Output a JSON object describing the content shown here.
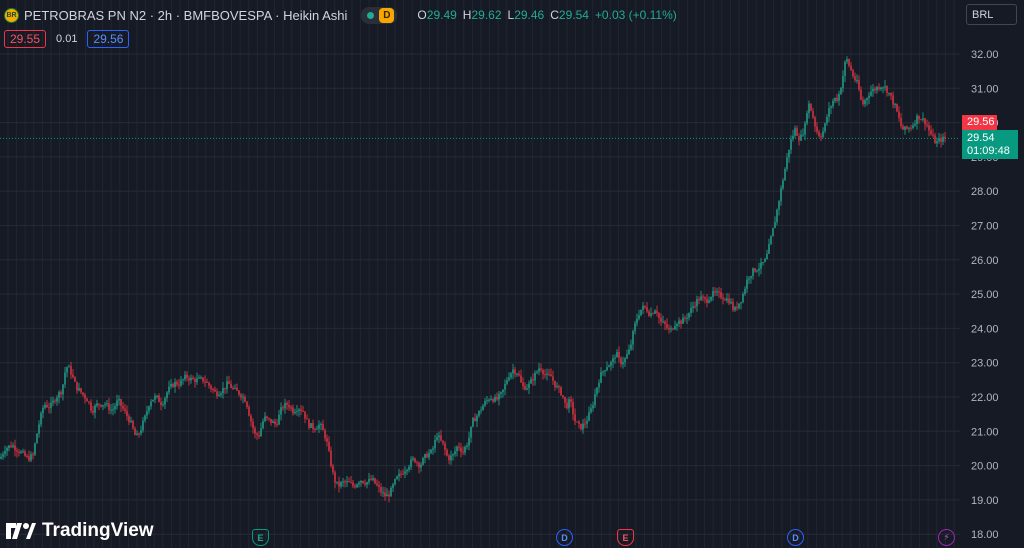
{
  "header": {
    "logo_text": "BR",
    "symbol_line": "PETROBRAS PN N2 · 2h · BMFBOVESPA · Heikin Ashi",
    "badge": "D",
    "ohlc": {
      "o_label": "O",
      "o": "29.49",
      "h_label": "H",
      "h": "29.62",
      "l_label": "L",
      "l": "29.46",
      "c_label": "C",
      "c": "29.54",
      "change": "+0.03 (+0.11%)"
    }
  },
  "trade": {
    "bid": "29.55",
    "spread": "0.01",
    "ask": "29.56"
  },
  "currency": "BRL",
  "price_tags": {
    "ask": "29.56",
    "last": "29.54",
    "countdown": "01:09:48"
  },
  "branding": "TradingView",
  "events": [
    {
      "label": "E",
      "kind": "earnings-green",
      "color": "#089981"
    },
    {
      "label": "D",
      "kind": "dividend"
    },
    {
      "label": "E",
      "kind": "earnings-red",
      "color": "#f23645"
    },
    {
      "label": "D",
      "kind": "dividend"
    },
    {
      "label": "⚡",
      "kind": "split"
    }
  ],
  "colors": {
    "up": "#22ab94",
    "down": "#f23645",
    "background": "#161a25",
    "grid": "#232632"
  },
  "chart_data": {
    "type": "candlestick",
    "style": "Heikin Ashi",
    "interval": "2h",
    "ylim": [
      17.85,
      32.6
    ],
    "y_ticks": [
      "32.00",
      "31.00",
      "30.00",
      "29.00",
      "28.00",
      "27.00",
      "26.00",
      "25.00",
      "24.00",
      "23.00",
      "22.00",
      "21.00",
      "20.00",
      "19.00",
      "18.00"
    ],
    "grid": true,
    "last_price": 29.54,
    "close_path": [
      [
        0,
        20.2
      ],
      [
        5,
        20.5
      ],
      [
        12,
        20.6
      ],
      [
        20,
        20.4
      ],
      [
        28,
        20.2
      ],
      [
        33,
        20.3
      ],
      [
        38,
        21.1
      ],
      [
        44,
        21.8
      ],
      [
        50,
        21.7
      ],
      [
        56,
        22.0
      ],
      [
        62,
        22.2
      ],
      [
        66,
        22.9
      ],
      [
        70,
        22.8
      ],
      [
        76,
        22.3
      ],
      [
        82,
        22.1
      ],
      [
        88,
        21.9
      ],
      [
        92,
        21.6
      ],
      [
        98,
        21.8
      ],
      [
        105,
        21.8
      ],
      [
        112,
        21.6
      ],
      [
        118,
        21.9
      ],
      [
        124,
        21.6
      ],
      [
        130,
        21.3
      ],
      [
        136,
        20.8
      ],
      [
        140,
        21.0
      ],
      [
        145,
        21.4
      ],
      [
        150,
        21.9
      ],
      [
        156,
        22.0
      ],
      [
        162,
        21.8
      ],
      [
        168,
        22.2
      ],
      [
        174,
        22.4
      ],
      [
        180,
        22.4
      ],
      [
        186,
        22.6
      ],
      [
        192,
        22.5
      ],
      [
        198,
        22.5
      ],
      [
        204,
        22.5
      ],
      [
        210,
        22.3
      ],
      [
        216,
        22.1
      ],
      [
        222,
        22.2
      ],
      [
        228,
        22.4
      ],
      [
        234,
        22.2
      ],
      [
        240,
        22.1
      ],
      [
        246,
        21.9
      ],
      [
        250,
        21.4
      ],
      [
        255,
        20.9
      ],
      [
        259,
        20.9
      ],
      [
        264,
        21.4
      ],
      [
        270,
        21.3
      ],
      [
        276,
        21.2
      ],
      [
        282,
        21.7
      ],
      [
        288,
        21.8
      ],
      [
        293,
        21.6
      ],
      [
        298,
        21.7
      ],
      [
        303,
        21.6
      ],
      [
        308,
        21.2
      ],
      [
        314,
        21.1
      ],
      [
        320,
        21.2
      ],
      [
        326,
        20.8
      ],
      [
        330,
        20.2
      ],
      [
        334,
        19.6
      ],
      [
        338,
        19.4
      ],
      [
        342,
        19.5
      ],
      [
        348,
        19.5
      ],
      [
        354,
        19.4
      ],
      [
        360,
        19.6
      ],
      [
        366,
        19.5
      ],
      [
        372,
        19.6
      ],
      [
        377,
        19.4
      ],
      [
        382,
        19.2
      ],
      [
        386,
        19.1
      ],
      [
        390,
        19.2
      ],
      [
        396,
        19.6
      ],
      [
        402,
        19.8
      ],
      [
        408,
        20.0
      ],
      [
        414,
        20.2
      ],
      [
        420,
        20.0
      ],
      [
        426,
        20.3
      ],
      [
        432,
        20.4
      ],
      [
        437,
        20.9
      ],
      [
        443,
        20.6
      ],
      [
        448,
        20.2
      ],
      [
        453,
        20.3
      ],
      [
        458,
        20.6
      ],
      [
        463,
        20.4
      ],
      [
        468,
        20.7
      ],
      [
        473,
        21.3
      ],
      [
        478,
        21.5
      ],
      [
        484,
        21.8
      ],
      [
        490,
        22.0
      ],
      [
        496,
        21.9
      ],
      [
        502,
        22.1
      ],
      [
        508,
        22.6
      ],
      [
        513,
        22.8
      ],
      [
        518,
        22.7
      ],
      [
        522,
        22.3
      ],
      [
        528,
        22.3
      ],
      [
        534,
        22.6
      ],
      [
        540,
        22.9
      ],
      [
        546,
        22.6
      ],
      [
        551,
        22.6
      ],
      [
        556,
        22.3
      ],
      [
        562,
        22.1
      ],
      [
        566,
        21.7
      ],
      [
        570,
        21.9
      ],
      [
        575,
        21.3
      ],
      [
        580,
        21.1
      ],
      [
        584,
        21.2
      ],
      [
        588,
        21.4
      ],
      [
        592,
        21.7
      ],
      [
        596,
        22.2
      ],
      [
        600,
        22.6
      ],
      [
        606,
        22.9
      ],
      [
        612,
        23.0
      ],
      [
        616,
        23.3
      ],
      [
        620,
        23.0
      ],
      [
        625,
        23.1
      ],
      [
        630,
        23.4
      ],
      [
        634,
        24.0
      ],
      [
        638,
        24.4
      ],
      [
        642,
        24.6
      ],
      [
        646,
        24.6
      ],
      [
        650,
        24.4
      ],
      [
        656,
        24.6
      ],
      [
        660,
        24.2
      ],
      [
        665,
        24.1
      ],
      [
        670,
        23.9
      ],
      [
        676,
        24.2
      ],
      [
        682,
        24.2
      ],
      [
        688,
        24.4
      ],
      [
        694,
        24.7
      ],
      [
        700,
        24.9
      ],
      [
        706,
        24.8
      ],
      [
        712,
        25.0
      ],
      [
        718,
        25.0
      ],
      [
        724,
        24.9
      ],
      [
        730,
        24.8
      ],
      [
        734,
        24.5
      ],
      [
        738,
        24.7
      ],
      [
        742,
        24.9
      ],
      [
        748,
        25.5
      ],
      [
        754,
        25.7
      ],
      [
        760,
        25.8
      ],
      [
        766,
        26.0
      ],
      [
        770,
        26.5
      ],
      [
        774,
        27.0
      ],
      [
        778,
        27.6
      ],
      [
        782,
        28.2
      ],
      [
        786,
        28.8
      ],
      [
        790,
        29.4
      ],
      [
        795,
        29.8
      ],
      [
        800,
        29.5
      ],
      [
        805,
        29.9
      ],
      [
        808,
        30.6
      ],
      [
        812,
        30.3
      ],
      [
        816,
        29.8
      ],
      [
        820,
        29.6
      ],
      [
        824,
        29.8
      ],
      [
        828,
        30.3
      ],
      [
        834,
        30.7
      ],
      [
        838,
        30.7
      ],
      [
        842,
        31.2
      ],
      [
        846,
        31.9
      ],
      [
        850,
        31.6
      ],
      [
        854,
        31.3
      ],
      [
        858,
        31.1
      ],
      [
        862,
        30.5
      ],
      [
        866,
        30.7
      ],
      [
        870,
        30.9
      ],
      [
        876,
        31.0
      ],
      [
        882,
        31.1
      ],
      [
        886,
        31.0
      ],
      [
        890,
        30.8
      ],
      [
        896,
        30.4
      ],
      [
        902,
        29.8
      ],
      [
        906,
        29.8
      ],
      [
        912,
        29.9
      ],
      [
        918,
        30.2
      ],
      [
        922,
        30.1
      ],
      [
        926,
        30.0
      ],
      [
        930,
        29.7
      ],
      [
        936,
        29.4
      ],
      [
        940,
        29.5
      ],
      [
        946,
        29.54
      ]
    ]
  }
}
